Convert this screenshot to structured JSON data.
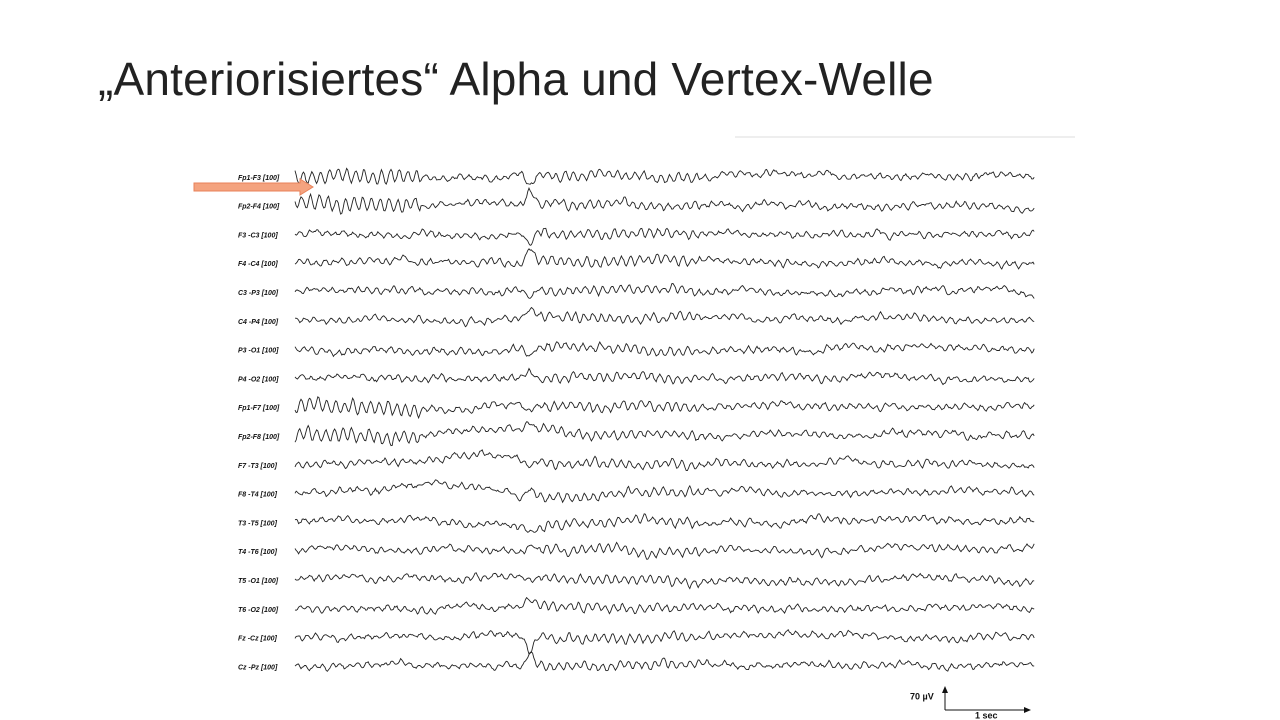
{
  "header": {
    "title": "„Anteriorisiertes“ Alpha und Vertex-Welle"
  },
  "figure": {
    "channels": [
      "Fp1-F3 [100]",
      "Fp2-F4 [100]",
      "F3 -C3 [100]",
      "F4 -C4 [100]",
      "C3 -P3 [100]",
      "C4 -P4 [100]",
      "P3 -O1 [100]",
      "P4 -O2 [100]",
      "Fp1-F7 [100]",
      "Fp2-F8 [100]",
      "F7 -T3 [100]",
      "F8 -T4 [100]",
      "T3 -T5 [100]",
      "T4 -T6 [100]",
      "T5 -O1 [100]",
      "T6 -O2 [100]",
      "Fz -Cz [100]",
      "Cz -Pz [100]"
    ],
    "scale_amplitude": "70 µV",
    "scale_time": "1 sec"
  }
}
